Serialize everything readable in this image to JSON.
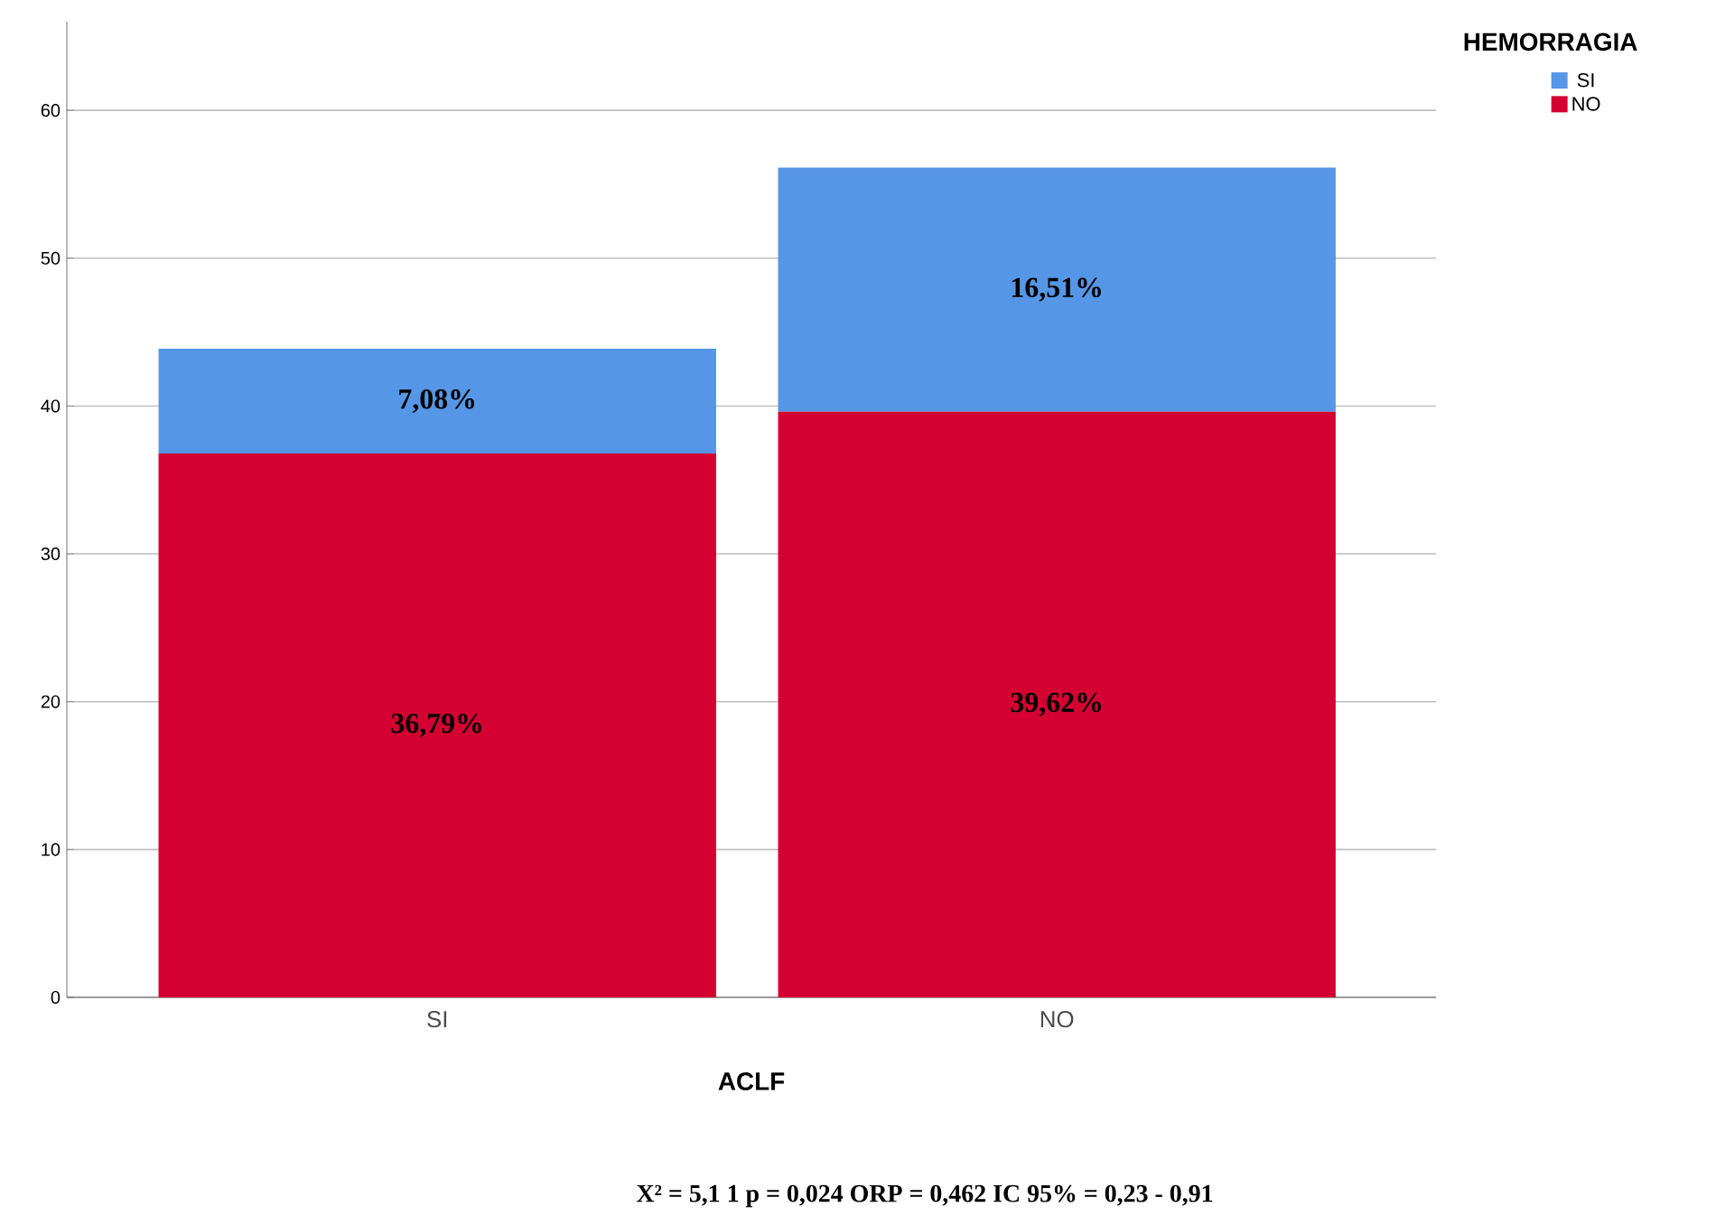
{
  "chart_data": {
    "type": "bar",
    "stacked": true,
    "xlabel": "ACLF",
    "legend_title": "HEMORRAGIA",
    "legend": "right",
    "grid": "y",
    "categories": [
      "SI",
      "NO"
    ],
    "series": [
      {
        "name": "NO",
        "color": "#d50032",
        "values": [
          36.79,
          39.62
        ],
        "value_labels": [
          "36,79%",
          "39,62%"
        ]
      },
      {
        "name": "SI",
        "color": "#5596e6",
        "values": [
          7.08,
          16.51
        ],
        "value_labels": [
          "7,08%",
          "16,51%"
        ]
      }
    ],
    "ylim": [
      0,
      66
    ],
    "yticks": [
      0,
      10,
      20,
      30,
      40,
      50,
      60
    ],
    "annotations": [
      "X² = 5,1 1  p = 0,024  ORP = 0,462  IC 95% = 0,23 - 0,91"
    ]
  }
}
